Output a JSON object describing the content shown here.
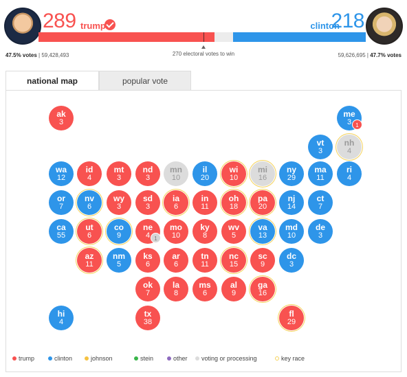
{
  "trump": {
    "electoral": "289",
    "name": "trump",
    "pct_label": "47.5% votes",
    "popular": "59,428,493"
  },
  "clinton": {
    "electoral": "218",
    "name": "clinton",
    "pct_label": "47.7% votes",
    "popular": "59,626,695"
  },
  "threshold": "270 electoral votes to win",
  "bar": {
    "total": 538,
    "trump": 289,
    "clinton": 218
  },
  "tabs": {
    "national_map": "national map",
    "popular_vote": "popular vote"
  },
  "colors": {
    "trump": "#f85250",
    "clinton": "#2e95e9",
    "johnson": "#f5c242",
    "stein": "#39b54a",
    "other": "#8e6bbf",
    "voting": "#dcdcdc",
    "key_race": "#f5d25a"
  },
  "states": [
    {
      "abbr": "ak",
      "ev": "3",
      "party": "r",
      "key": false
    },
    {
      "abbr": "me",
      "ev": "3",
      "party": "d",
      "key": false
    },
    {
      "abbr": "vt",
      "ev": "3",
      "party": "d",
      "key": false
    },
    {
      "abbr": "nh",
      "ev": "4",
      "party": "g",
      "key": true
    },
    {
      "abbr": "wa",
      "ev": "12",
      "party": "d",
      "key": false
    },
    {
      "abbr": "id",
      "ev": "4",
      "party": "r",
      "key": false
    },
    {
      "abbr": "mt",
      "ev": "3",
      "party": "r",
      "key": false
    },
    {
      "abbr": "nd",
      "ev": "3",
      "party": "r",
      "key": false
    },
    {
      "abbr": "mn",
      "ev": "10",
      "party": "g",
      "key": false
    },
    {
      "abbr": "il",
      "ev": "20",
      "party": "d",
      "key": false
    },
    {
      "abbr": "wi",
      "ev": "10",
      "party": "r",
      "key": true
    },
    {
      "abbr": "mi",
      "ev": "16",
      "party": "g",
      "key": true
    },
    {
      "abbr": "ny",
      "ev": "29",
      "party": "d",
      "key": false
    },
    {
      "abbr": "ma",
      "ev": "11",
      "party": "d",
      "key": false
    },
    {
      "abbr": "ri",
      "ev": "4",
      "party": "d",
      "key": false
    },
    {
      "abbr": "or",
      "ev": "7",
      "party": "d",
      "key": false
    },
    {
      "abbr": "nv",
      "ev": "6",
      "party": "d",
      "key": true
    },
    {
      "abbr": "wy",
      "ev": "3",
      "party": "r",
      "key": false
    },
    {
      "abbr": "sd",
      "ev": "3",
      "party": "r",
      "key": false
    },
    {
      "abbr": "ia",
      "ev": "6",
      "party": "r",
      "key": true
    },
    {
      "abbr": "in",
      "ev": "11",
      "party": "r",
      "key": false
    },
    {
      "abbr": "oh",
      "ev": "18",
      "party": "r",
      "key": true
    },
    {
      "abbr": "pa",
      "ev": "20",
      "party": "r",
      "key": true
    },
    {
      "abbr": "nj",
      "ev": "14",
      "party": "d",
      "key": false
    },
    {
      "abbr": "ct",
      "ev": "7",
      "party": "d",
      "key": false
    },
    {
      "abbr": "ca",
      "ev": "55",
      "party": "d",
      "key": false
    },
    {
      "abbr": "ut",
      "ev": "6",
      "party": "r",
      "key": true
    },
    {
      "abbr": "co",
      "ev": "9",
      "party": "d",
      "key": true
    },
    {
      "abbr": "ne",
      "ev": "4",
      "party": "r",
      "key": false
    },
    {
      "abbr": "mo",
      "ev": "10",
      "party": "r",
      "key": false
    },
    {
      "abbr": "ky",
      "ev": "8",
      "party": "r",
      "key": false
    },
    {
      "abbr": "wv",
      "ev": "5",
      "party": "r",
      "key": false
    },
    {
      "abbr": "va",
      "ev": "13",
      "party": "d",
      "key": true
    },
    {
      "abbr": "md",
      "ev": "10",
      "party": "d",
      "key": false
    },
    {
      "abbr": "de",
      "ev": "3",
      "party": "d",
      "key": false
    },
    {
      "abbr": "az",
      "ev": "11",
      "party": "r",
      "key": true
    },
    {
      "abbr": "nm",
      "ev": "5",
      "party": "d",
      "key": false
    },
    {
      "abbr": "ks",
      "ev": "6",
      "party": "r",
      "key": false
    },
    {
      "abbr": "ar",
      "ev": "6",
      "party": "r",
      "key": false
    },
    {
      "abbr": "tn",
      "ev": "11",
      "party": "r",
      "key": false
    },
    {
      "abbr": "nc",
      "ev": "15",
      "party": "r",
      "key": true
    },
    {
      "abbr": "sc",
      "ev": "9",
      "party": "r",
      "key": false
    },
    {
      "abbr": "dc",
      "ev": "3",
      "party": "d",
      "key": false
    },
    {
      "abbr": "ok",
      "ev": "7",
      "party": "r",
      "key": false
    },
    {
      "abbr": "la",
      "ev": "8",
      "party": "r",
      "key": false
    },
    {
      "abbr": "ms",
      "ev": "6",
      "party": "r",
      "key": false
    },
    {
      "abbr": "al",
      "ev": "9",
      "party": "r",
      "key": false
    },
    {
      "abbr": "ga",
      "ev": "16",
      "party": "r",
      "key": true
    },
    {
      "abbr": "hi",
      "ev": "4",
      "party": "d",
      "key": false
    },
    {
      "abbr": "tx",
      "ev": "38",
      "party": "r",
      "key": false
    },
    {
      "abbr": "fl",
      "ev": "29",
      "party": "r",
      "key": true
    }
  ],
  "districts": [
    {
      "state": "me",
      "value": "1",
      "party": "r"
    },
    {
      "state": "ne",
      "value": "1",
      "party": "g"
    }
  ],
  "legend": [
    {
      "label": "trump",
      "color": "#f85250"
    },
    {
      "label": "clinton",
      "color": "#2e95e9"
    },
    {
      "label": "johnson",
      "color": "#f5c242"
    },
    {
      "label": "stein",
      "color": "#39b54a"
    },
    {
      "label": "other",
      "color": "#8e6bbf"
    },
    {
      "label": "voting or processing",
      "color": "#dcdcdc"
    },
    {
      "label": "key race",
      "color": "#f5d25a",
      "ring": true
    }
  ]
}
